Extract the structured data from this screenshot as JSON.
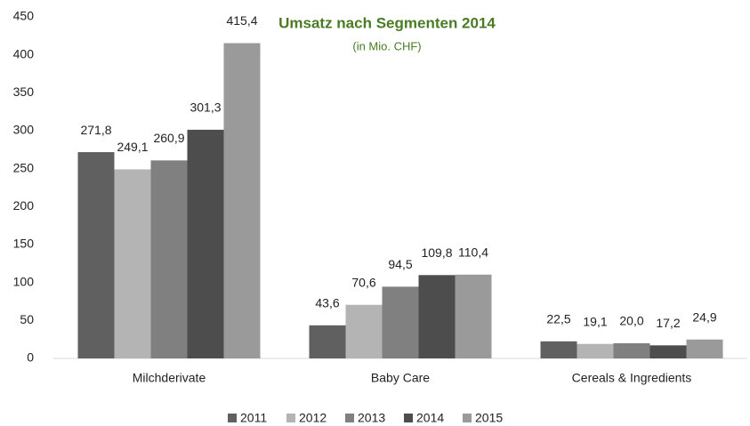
{
  "chart_data": {
    "type": "bar",
    "title": "Umsatz nach Segmenten 2014",
    "subtitle": "(in Mio. CHF)",
    "categories": [
      "Milchderivate",
      "Baby Care",
      "Cereals & Ingredients"
    ],
    "series": [
      {
        "name": "2011",
        "color": "#606060",
        "values": [
          271.8,
          43.6,
          22.5
        ],
        "value_labels": [
          "271,8",
          "43,6",
          "22,5"
        ]
      },
      {
        "name": "2012",
        "color": "#b4b4b4",
        "values": [
          249.1,
          70.6,
          19.1
        ],
        "value_labels": [
          "249,1",
          "70,6",
          "19,1"
        ]
      },
      {
        "name": "2013",
        "color": "#808080",
        "values": [
          260.9,
          94.5,
          20.0
        ],
        "value_labels": [
          "260,9",
          "94,5",
          "20,0"
        ]
      },
      {
        "name": "2014",
        "color": "#4d4d4d",
        "values": [
          301.3,
          109.8,
          17.2
        ],
        "value_labels": [
          "301,3",
          "109,8",
          "17,2"
        ]
      },
      {
        "name": "2015",
        "color": "#9a9a9a",
        "values": [
          415.4,
          110.4,
          24.9
        ],
        "value_labels": [
          "415,4",
          "110,4",
          "24,9"
        ]
      }
    ],
    "ylim": [
      0,
      450
    ],
    "yticks": [
      0,
      50,
      100,
      150,
      200,
      250,
      300,
      350,
      400,
      450
    ],
    "grid": false,
    "legend": "bottom"
  }
}
